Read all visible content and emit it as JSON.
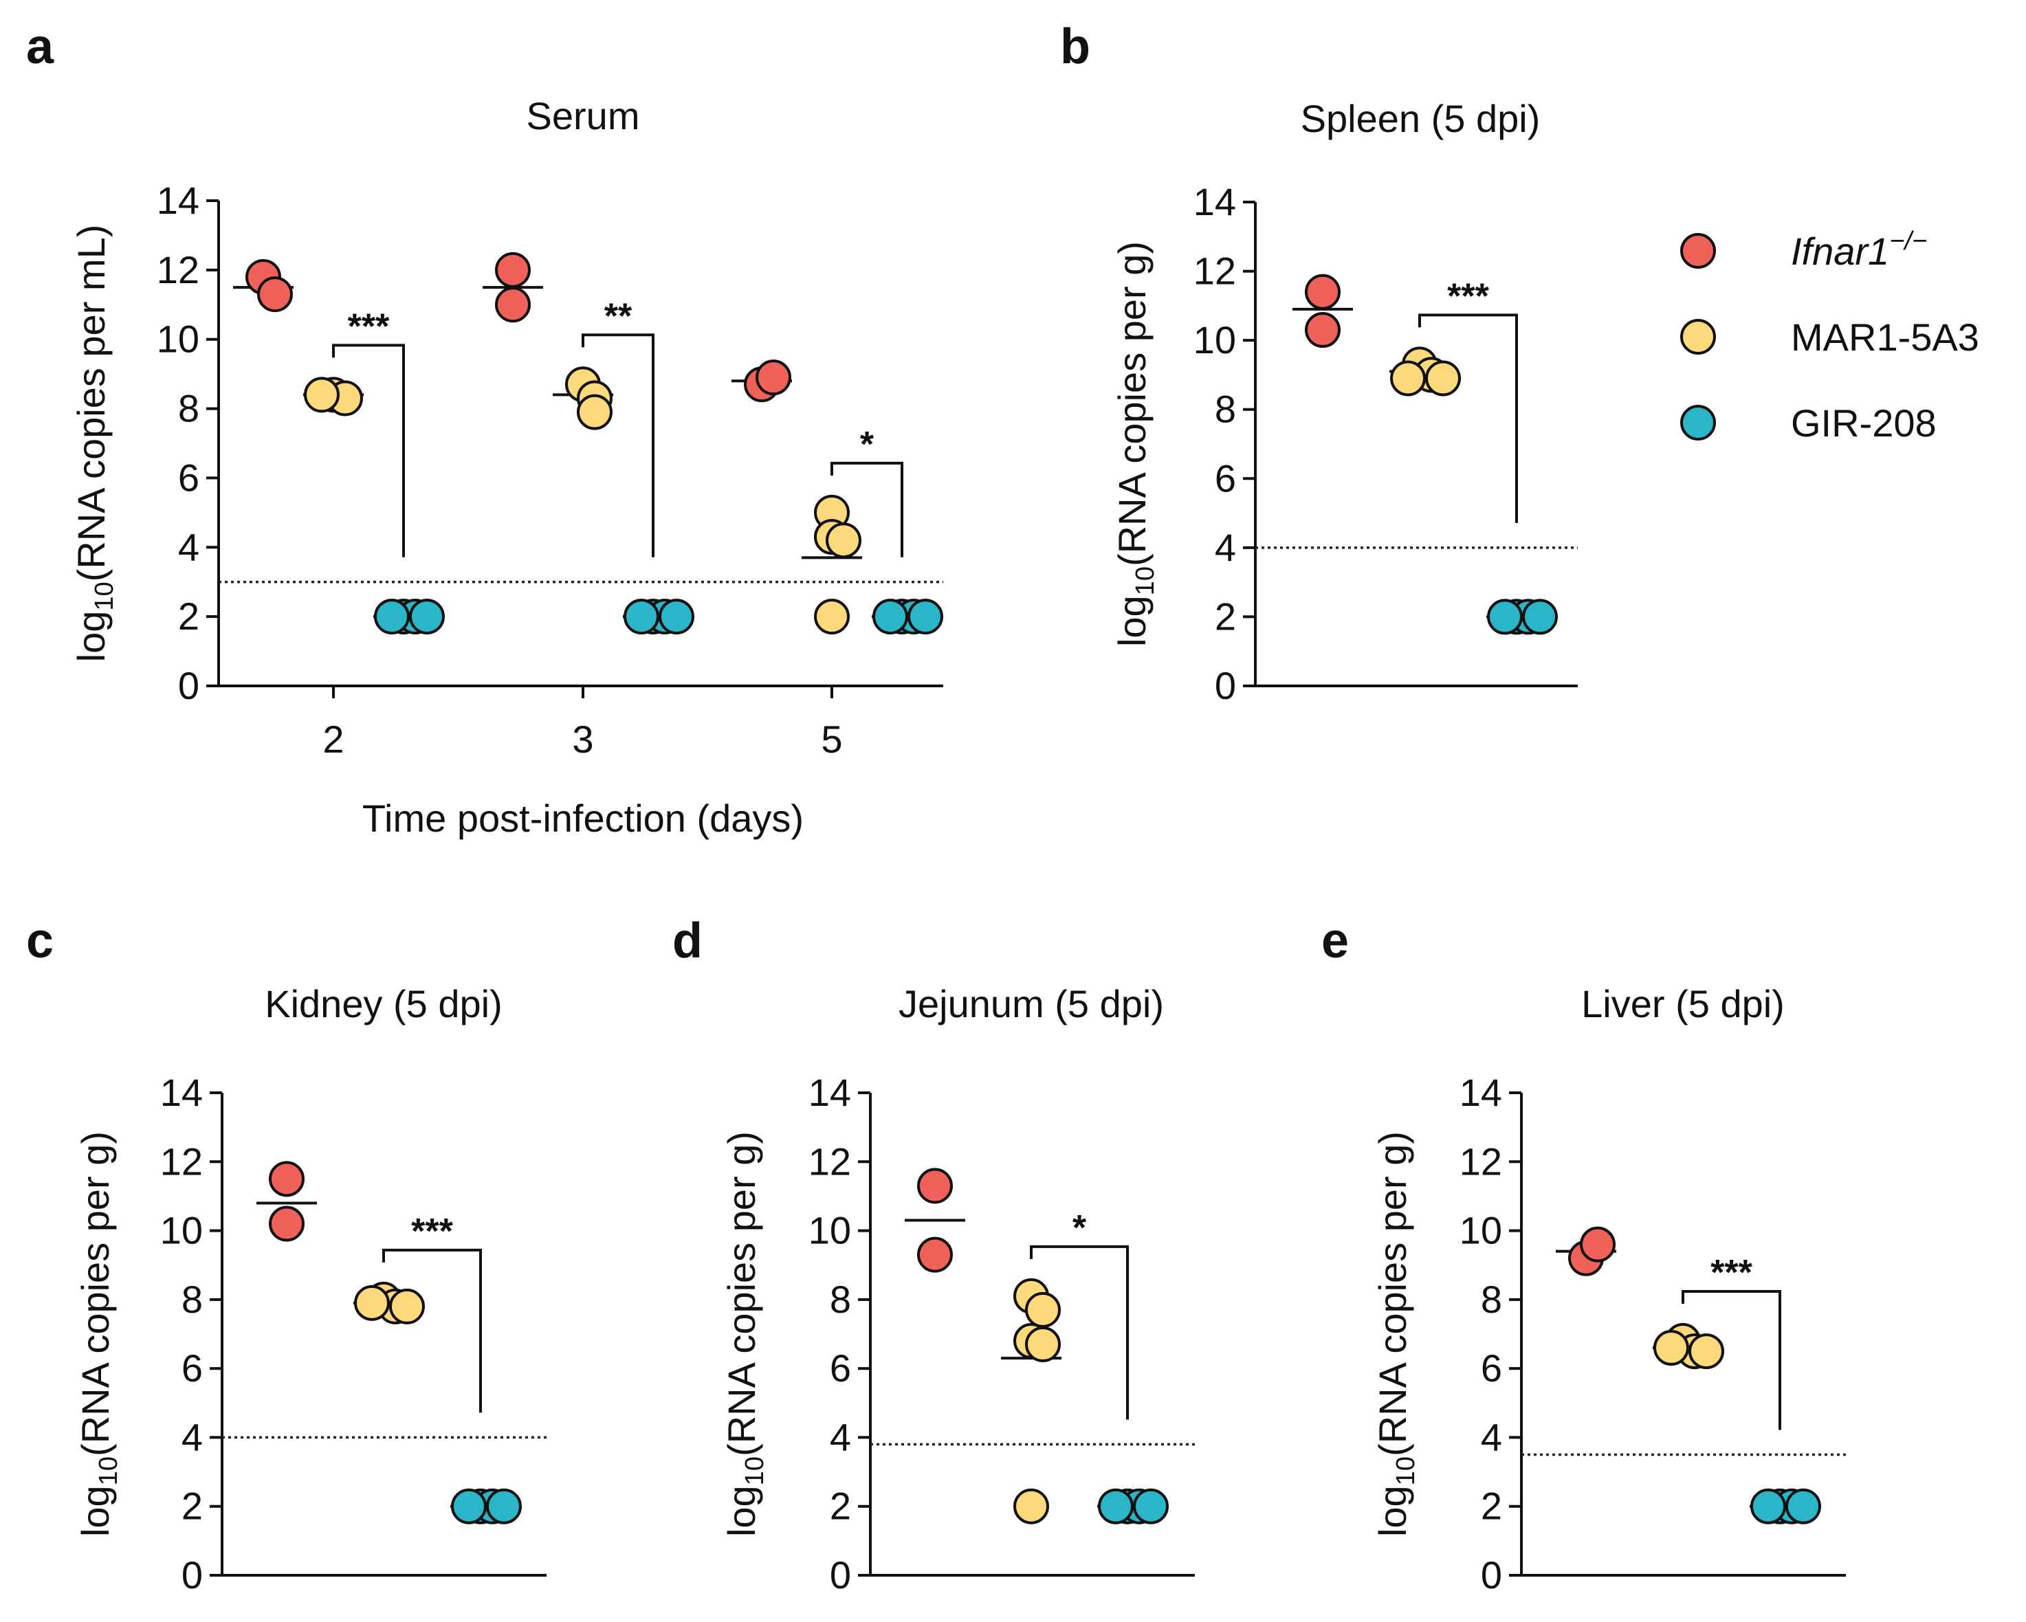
{
  "colors": {
    "Ifnar1": "#f0615a",
    "MAR1-5A3": "#fcd97a",
    "GIR-208": "#2bb5c8"
  },
  "legend": {
    "entries": [
      {
        "key": "Ifnar1",
        "label": "Ifnar1",
        "sup": "−/−",
        "italic": true
      },
      {
        "key": "MAR1-5A3",
        "label": "MAR1-5A3",
        "italic": false
      },
      {
        "key": "GIR-208",
        "label": "GIR-208",
        "italic": false
      }
    ]
  },
  "chart_data": [
    {
      "panel": "a",
      "type": "scatter",
      "title": "Serum",
      "ylabel_main": "log",
      "ylabel_sub": "10",
      "ylabel_rest": "(RNA copies per mL)",
      "xlabel": "Time post-infection (days)",
      "ylim": [
        0,
        14
      ],
      "yticks": [
        0,
        2,
        4,
        6,
        8,
        10,
        12,
        14
      ],
      "limit_of_detection": 3,
      "groups": [
        {
          "category": "2",
          "series": [
            {
              "name": "Ifnar1",
              "values": [
                11.8,
                11.3
              ],
              "mean": 11.5
            },
            {
              "name": "MAR1-5A3",
              "values": [
                8.4,
                8.3,
                8.4
              ],
              "mean": 8.4
            },
            {
              "name": "GIR-208",
              "values": [
                2,
                2,
                2,
                2
              ],
              "mean": 2
            }
          ],
          "significance": "***"
        },
        {
          "category": "3",
          "series": [
            {
              "name": "Ifnar1",
              "values": [
                12.0,
                11.0
              ],
              "mean": 11.5
            },
            {
              "name": "MAR1-5A3",
              "values": [
                8.7,
                8.3,
                7.9
              ],
              "mean": 8.4
            },
            {
              "name": "GIR-208",
              "values": [
                2,
                2,
                2,
                2
              ],
              "mean": 2
            }
          ],
          "significance": "**"
        },
        {
          "category": "5",
          "series": [
            {
              "name": "Ifnar1",
              "values": [
                8.7,
                8.9
              ],
              "mean": 8.8
            },
            {
              "name": "MAR1-5A3",
              "values": [
                5.0,
                4.3,
                4.2,
                2.0
              ],
              "mean": 3.7
            },
            {
              "name": "GIR-208",
              "values": [
                2,
                2,
                2,
                2
              ],
              "mean": 2
            }
          ],
          "significance": "*"
        }
      ]
    },
    {
      "panel": "b",
      "type": "scatter",
      "title": "Spleen (5 dpi)",
      "ylabel_main": "log",
      "ylabel_sub": "10",
      "ylabel_rest": "(RNA copies per g)",
      "ylim": [
        0,
        14
      ],
      "yticks": [
        0,
        2,
        4,
        6,
        8,
        10,
        12,
        14
      ],
      "limit_of_detection": 4,
      "series": [
        {
          "name": "Ifnar1",
          "values": [
            11.4,
            10.3
          ],
          "mean": 10.9
        },
        {
          "name": "MAR1-5A3",
          "values": [
            9.3,
            9.0,
            8.9,
            8.9
          ],
          "mean": 9.1
        },
        {
          "name": "GIR-208",
          "values": [
            2,
            2,
            2,
            2
          ],
          "mean": 2
        }
      ],
      "significance": "***"
    },
    {
      "panel": "c",
      "type": "scatter",
      "title": "Kidney (5 dpi)",
      "ylabel_main": "log",
      "ylabel_sub": "10",
      "ylabel_rest": "(RNA copies per g)",
      "ylim": [
        0,
        14
      ],
      "yticks": [
        0,
        2,
        4,
        6,
        8,
        10,
        12,
        14
      ],
      "limit_of_detection": 4,
      "series": [
        {
          "name": "Ifnar1",
          "values": [
            11.5,
            10.2
          ],
          "mean": 10.8
        },
        {
          "name": "MAR1-5A3",
          "values": [
            8.0,
            7.8,
            7.9,
            7.8
          ],
          "mean": 7.9
        },
        {
          "name": "GIR-208",
          "values": [
            2,
            2,
            2,
            2
          ],
          "mean": 2
        }
      ],
      "significance": "***"
    },
    {
      "panel": "d",
      "type": "scatter",
      "title": "Jejunum (5 dpi)",
      "ylabel_main": "log",
      "ylabel_sub": "10",
      "ylabel_rest": "(RNA copies per g)",
      "ylim": [
        0,
        14
      ],
      "yticks": [
        0,
        2,
        4,
        6,
        8,
        10,
        12,
        14
      ],
      "limit_of_detection": 3.8,
      "series": [
        {
          "name": "Ifnar1",
          "values": [
            11.3,
            9.3
          ],
          "mean": 10.3
        },
        {
          "name": "MAR1-5A3",
          "values": [
            8.1,
            7.7,
            6.8,
            6.7,
            2.0
          ],
          "mean": 6.3
        },
        {
          "name": "GIR-208",
          "values": [
            2,
            2,
            2,
            2
          ],
          "mean": 2
        }
      ],
      "significance": "*"
    },
    {
      "panel": "e",
      "type": "scatter",
      "title": "Liver (5 dpi)",
      "ylabel_main": "log",
      "ylabel_sub": "10",
      "ylabel_rest": "(RNA copies per g)",
      "ylim": [
        0,
        14
      ],
      "yticks": [
        0,
        2,
        4,
        6,
        8,
        10,
        12,
        14
      ],
      "limit_of_detection": 3.5,
      "series": [
        {
          "name": "Ifnar1",
          "values": [
            9.2,
            9.6
          ],
          "mean": 9.4
        },
        {
          "name": "MAR1-5A3",
          "values": [
            6.8,
            6.5,
            6.6,
            6.5
          ],
          "mean": 6.6
        },
        {
          "name": "GIR-208",
          "values": [
            2,
            2,
            2,
            2
          ],
          "mean": 2
        }
      ],
      "significance": "***"
    }
  ]
}
